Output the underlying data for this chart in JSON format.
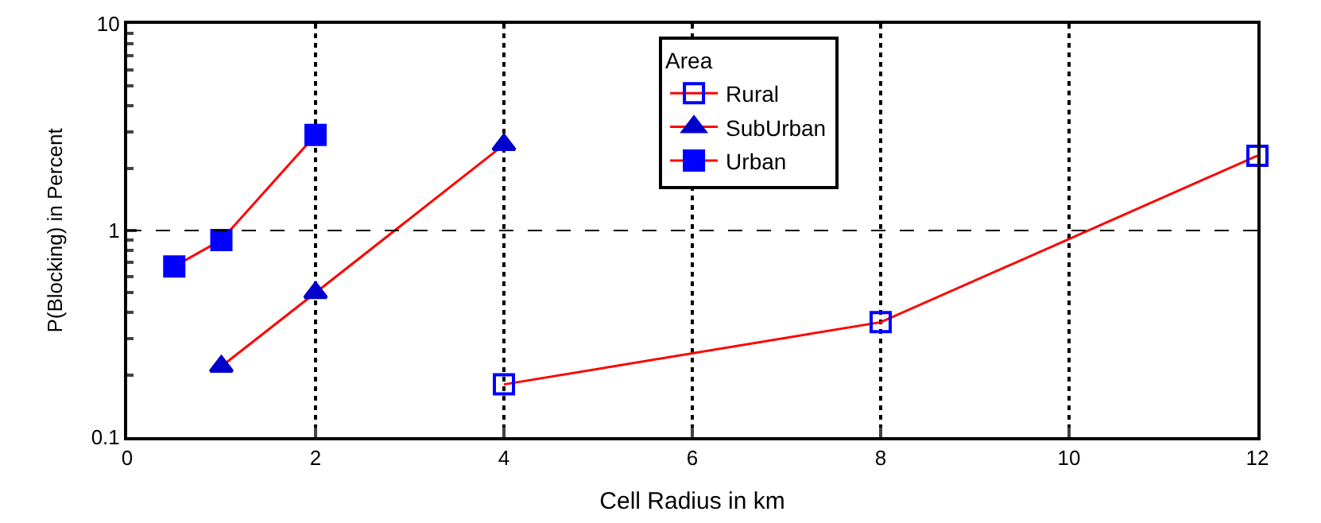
{
  "chart_data": {
    "type": "line",
    "xlabel": "Cell Radius in km",
    "ylabel": "P(Blocking) in Percent",
    "legend_title": "Area",
    "xlim": [
      0,
      12
    ],
    "xticks": [
      0,
      2,
      4,
      6,
      8,
      10,
      12
    ],
    "ylim": [
      0.1,
      10
    ],
    "yticks": [
      0.1,
      1,
      10
    ],
    "log": "y",
    "grid": "x",
    "legend": "top",
    "ref_lines": [
      {
        "axis": "y",
        "value": 1,
        "color": "#000000",
        "line_style": "dashed"
      }
    ],
    "series": [
      {
        "name": "Rural",
        "color": "#ff0000",
        "colors": [
          "#0000ff",
          "#0000ff",
          "#0000ff"
        ],
        "marker": "square-open",
        "x": [
          4,
          8,
          12
        ],
        "values": [
          0.18,
          0.36,
          2.3
        ]
      },
      {
        "name": "SubUrban",
        "color": "#ff0000",
        "colors": [
          "#0000cc",
          "#0000cc",
          "#0000cc"
        ],
        "marker": "triangle",
        "x": [
          1,
          2,
          4
        ],
        "values": [
          0.22,
          0.5,
          2.6
        ]
      },
      {
        "name": "Urban",
        "color": "#ff0000",
        "colors": [
          "#0000ff",
          "#0000ff",
          "#0000ff"
        ],
        "marker": "square",
        "x": [
          0.5,
          1,
          2
        ],
        "values": [
          0.67,
          0.9,
          2.9
        ]
      }
    ]
  }
}
